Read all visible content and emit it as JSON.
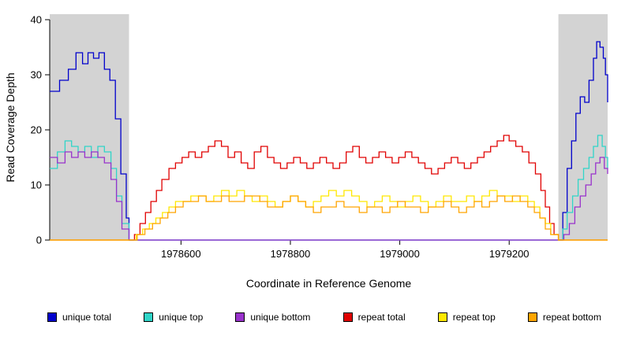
{
  "chart_data": {
    "type": "line",
    "interpolation": "step",
    "title": "",
    "xlabel": "Coordinate in Reference Genome",
    "ylabel": "Read Coverage Depth",
    "xlim": [
      1978360,
      1979380
    ],
    "ylim": [
      0,
      41
    ],
    "x_ticks": [
      1978600,
      1978800,
      1979000,
      1979200
    ],
    "y_ticks": [
      0,
      10,
      20,
      30,
      40
    ],
    "grid": false,
    "legend_position": "bottom",
    "shaded_regions": [
      {
        "from": 1978360,
        "to": 1978505,
        "color": "#d3d3d3"
      },
      {
        "from": 1979290,
        "to": 1979380,
        "color": "#d3d3d3"
      }
    ],
    "series": [
      {
        "name": "unique total",
        "color": "#0000cc",
        "points": [
          [
            1978360,
            27
          ],
          [
            1978378,
            29
          ],
          [
            1978394,
            31
          ],
          [
            1978408,
            34
          ],
          [
            1978420,
            32
          ],
          [
            1978430,
            34
          ],
          [
            1978440,
            33
          ],
          [
            1978450,
            34
          ],
          [
            1978460,
            31
          ],
          [
            1978470,
            29
          ],
          [
            1978480,
            22
          ],
          [
            1978490,
            12
          ],
          [
            1978500,
            4
          ],
          [
            1978505,
            0
          ],
          [
            1979290,
            0
          ],
          [
            1979298,
            5
          ],
          [
            1979306,
            13
          ],
          [
            1979314,
            18
          ],
          [
            1979322,
            23
          ],
          [
            1979330,
            26
          ],
          [
            1979338,
            25
          ],
          [
            1979346,
            29
          ],
          [
            1979354,
            33
          ],
          [
            1979360,
            36
          ],
          [
            1979366,
            35
          ],
          [
            1979372,
            33
          ],
          [
            1979376,
            30
          ],
          [
            1979380,
            25
          ]
        ]
      },
      {
        "name": "unique top",
        "color": "#30d5c8",
        "points": [
          [
            1978360,
            13
          ],
          [
            1978374,
            16
          ],
          [
            1978388,
            18
          ],
          [
            1978400,
            17
          ],
          [
            1978412,
            16
          ],
          [
            1978424,
            17
          ],
          [
            1978436,
            15
          ],
          [
            1978448,
            17
          ],
          [
            1978460,
            16
          ],
          [
            1978472,
            13
          ],
          [
            1978482,
            8
          ],
          [
            1978492,
            3
          ],
          [
            1978505,
            0
          ],
          [
            1979290,
            0
          ],
          [
            1979298,
            2
          ],
          [
            1979306,
            5
          ],
          [
            1979316,
            8
          ],
          [
            1979326,
            11
          ],
          [
            1979336,
            13
          ],
          [
            1979346,
            15
          ],
          [
            1979354,
            17
          ],
          [
            1979362,
            19
          ],
          [
            1979370,
            17
          ],
          [
            1979376,
            15
          ],
          [
            1979380,
            13
          ]
        ]
      },
      {
        "name": "unique bottom",
        "color": "#9932cc",
        "points": [
          [
            1978360,
            15
          ],
          [
            1978374,
            14
          ],
          [
            1978388,
            16
          ],
          [
            1978400,
            15
          ],
          [
            1978412,
            16
          ],
          [
            1978424,
            15
          ],
          [
            1978436,
            16
          ],
          [
            1978448,
            15
          ],
          [
            1978460,
            14
          ],
          [
            1978472,
            11
          ],
          [
            1978482,
            7
          ],
          [
            1978492,
            2
          ],
          [
            1978505,
            0
          ],
          [
            1979290,
            0
          ],
          [
            1979300,
            1
          ],
          [
            1979310,
            3
          ],
          [
            1979320,
            6
          ],
          [
            1979330,
            8
          ],
          [
            1979340,
            10
          ],
          [
            1979350,
            12
          ],
          [
            1979358,
            14
          ],
          [
            1979366,
            15
          ],
          [
            1979374,
            13
          ],
          [
            1979380,
            12
          ]
        ]
      },
      {
        "name": "repeat total",
        "color": "#e00000",
        "points": [
          [
            1978360,
            0
          ],
          [
            1978505,
            0
          ],
          [
            1978515,
            1
          ],
          [
            1978525,
            3
          ],
          [
            1978535,
            5
          ],
          [
            1978545,
            7
          ],
          [
            1978555,
            9
          ],
          [
            1978565,
            11
          ],
          [
            1978578,
            13
          ],
          [
            1978590,
            14
          ],
          [
            1978602,
            15
          ],
          [
            1978614,
            16
          ],
          [
            1978626,
            15
          ],
          [
            1978638,
            16
          ],
          [
            1978650,
            17
          ],
          [
            1978662,
            18
          ],
          [
            1978674,
            17
          ],
          [
            1978686,
            15
          ],
          [
            1978698,
            16
          ],
          [
            1978710,
            14
          ],
          [
            1978722,
            13
          ],
          [
            1978734,
            16
          ],
          [
            1978746,
            17
          ],
          [
            1978758,
            15
          ],
          [
            1978770,
            14
          ],
          [
            1978782,
            13
          ],
          [
            1978794,
            14
          ],
          [
            1978806,
            15
          ],
          [
            1978818,
            14
          ],
          [
            1978830,
            13
          ],
          [
            1978842,
            14
          ],
          [
            1978854,
            15
          ],
          [
            1978866,
            14
          ],
          [
            1978878,
            13
          ],
          [
            1978890,
            14
          ],
          [
            1978902,
            16
          ],
          [
            1978914,
            17
          ],
          [
            1978926,
            15
          ],
          [
            1978938,
            14
          ],
          [
            1978950,
            15
          ],
          [
            1978962,
            16
          ],
          [
            1978974,
            15
          ],
          [
            1978986,
            14
          ],
          [
            1978998,
            15
          ],
          [
            1979010,
            16
          ],
          [
            1979022,
            15
          ],
          [
            1979034,
            14
          ],
          [
            1979046,
            13
          ],
          [
            1979058,
            12
          ],
          [
            1979070,
            13
          ],
          [
            1979082,
            14
          ],
          [
            1979094,
            15
          ],
          [
            1979106,
            14
          ],
          [
            1979118,
            13
          ],
          [
            1979130,
            14
          ],
          [
            1979142,
            15
          ],
          [
            1979154,
            16
          ],
          [
            1979166,
            17
          ],
          [
            1979178,
            18
          ],
          [
            1979190,
            19
          ],
          [
            1979200,
            18
          ],
          [
            1979212,
            17
          ],
          [
            1979224,
            16
          ],
          [
            1979236,
            14
          ],
          [
            1979248,
            12
          ],
          [
            1979258,
            9
          ],
          [
            1979266,
            6
          ],
          [
            1979274,
            3
          ],
          [
            1979282,
            1
          ],
          [
            1979290,
            0
          ],
          [
            1979380,
            0
          ]
        ]
      },
      {
        "name": "repeat top",
        "color": "#ffe800",
        "points": [
          [
            1978360,
            0
          ],
          [
            1978505,
            0
          ],
          [
            1978518,
            1
          ],
          [
            1978530,
            2
          ],
          [
            1978542,
            3
          ],
          [
            1978554,
            4
          ],
          [
            1978566,
            5
          ],
          [
            1978578,
            6
          ],
          [
            1978590,
            7
          ],
          [
            1978604,
            7
          ],
          [
            1978618,
            8
          ],
          [
            1978632,
            8
          ],
          [
            1978646,
            7
          ],
          [
            1978660,
            8
          ],
          [
            1978674,
            9
          ],
          [
            1978688,
            8
          ],
          [
            1978702,
            9
          ],
          [
            1978716,
            8
          ],
          [
            1978730,
            7
          ],
          [
            1978744,
            8
          ],
          [
            1978758,
            7
          ],
          [
            1978772,
            6
          ],
          [
            1978786,
            7
          ],
          [
            1978800,
            8
          ],
          [
            1978814,
            7
          ],
          [
            1978828,
            6
          ],
          [
            1978842,
            7
          ],
          [
            1978856,
            8
          ],
          [
            1978870,
            9
          ],
          [
            1978884,
            8
          ],
          [
            1978898,
            9
          ],
          [
            1978912,
            8
          ],
          [
            1978926,
            7
          ],
          [
            1978940,
            6
          ],
          [
            1978954,
            7
          ],
          [
            1978968,
            8
          ],
          [
            1978982,
            7
          ],
          [
            1978996,
            6
          ],
          [
            1979010,
            7
          ],
          [
            1979024,
            8
          ],
          [
            1979038,
            7
          ],
          [
            1979052,
            6
          ],
          [
            1979066,
            7
          ],
          [
            1979080,
            8
          ],
          [
            1979094,
            7
          ],
          [
            1979108,
            7
          ],
          [
            1979122,
            8
          ],
          [
            1979136,
            7
          ],
          [
            1979150,
            8
          ],
          [
            1979164,
            9
          ],
          [
            1979178,
            8
          ],
          [
            1979192,
            8
          ],
          [
            1979206,
            7
          ],
          [
            1979220,
            8
          ],
          [
            1979234,
            7
          ],
          [
            1979246,
            6
          ],
          [
            1979256,
            4
          ],
          [
            1979266,
            3
          ],
          [
            1979276,
            1
          ],
          [
            1979290,
            0
          ],
          [
            1979380,
            0
          ]
        ]
      },
      {
        "name": "repeat bottom",
        "color": "#ffa500",
        "points": [
          [
            1978360,
            0
          ],
          [
            1978505,
            0
          ],
          [
            1978520,
            1
          ],
          [
            1978534,
            2
          ],
          [
            1978548,
            3
          ],
          [
            1978562,
            4
          ],
          [
            1978576,
            5
          ],
          [
            1978590,
            6
          ],
          [
            1978604,
            7
          ],
          [
            1978618,
            7
          ],
          [
            1978632,
            8
          ],
          [
            1978646,
            7
          ],
          [
            1978660,
            7
          ],
          [
            1978674,
            8
          ],
          [
            1978688,
            7
          ],
          [
            1978702,
            7
          ],
          [
            1978716,
            8
          ],
          [
            1978730,
            8
          ],
          [
            1978744,
            7
          ],
          [
            1978758,
            6
          ],
          [
            1978772,
            6
          ],
          [
            1978786,
            7
          ],
          [
            1978800,
            8
          ],
          [
            1978814,
            7
          ],
          [
            1978828,
            6
          ],
          [
            1978842,
            5
          ],
          [
            1978856,
            6
          ],
          [
            1978870,
            6
          ],
          [
            1978884,
            7
          ],
          [
            1978898,
            6
          ],
          [
            1978912,
            6
          ],
          [
            1978926,
            5
          ],
          [
            1978940,
            6
          ],
          [
            1978954,
            6
          ],
          [
            1978968,
            5
          ],
          [
            1978982,
            6
          ],
          [
            1978996,
            7
          ],
          [
            1979010,
            6
          ],
          [
            1979024,
            6
          ],
          [
            1979038,
            5
          ],
          [
            1979052,
            6
          ],
          [
            1979066,
            6
          ],
          [
            1979080,
            7
          ],
          [
            1979094,
            6
          ],
          [
            1979108,
            5
          ],
          [
            1979122,
            6
          ],
          [
            1979136,
            7
          ],
          [
            1979150,
            6
          ],
          [
            1979164,
            7
          ],
          [
            1979178,
            8
          ],
          [
            1979192,
            7
          ],
          [
            1979206,
            8
          ],
          [
            1979220,
            7
          ],
          [
            1979234,
            6
          ],
          [
            1979246,
            5
          ],
          [
            1979256,
            4
          ],
          [
            1979266,
            2
          ],
          [
            1979276,
            1
          ],
          [
            1979290,
            0
          ],
          [
            1979380,
            0
          ]
        ]
      }
    ]
  }
}
